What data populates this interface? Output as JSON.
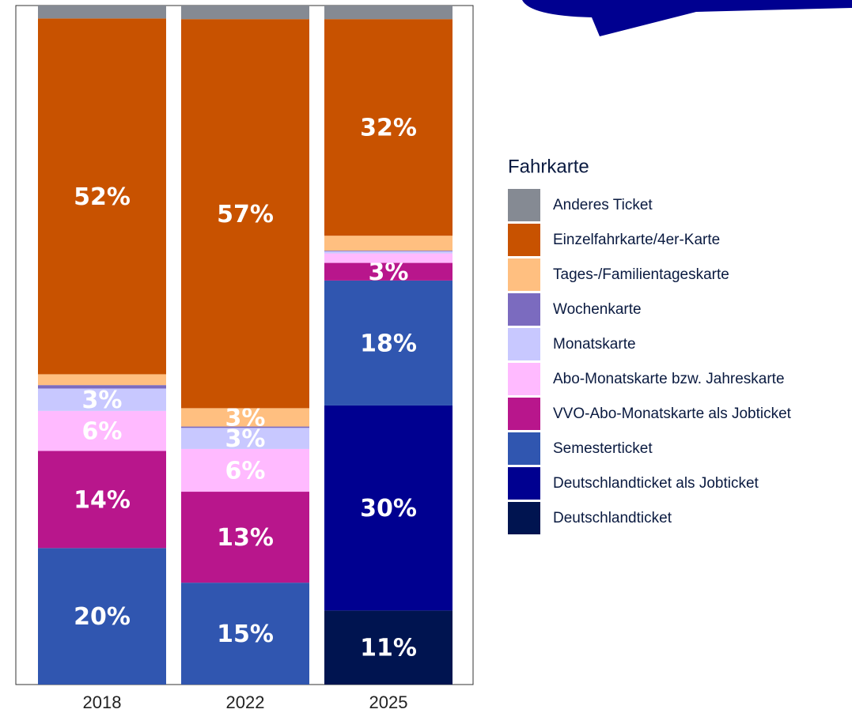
{
  "chart_data": {
    "type": "stacked_bar",
    "legend_title": "Fahrkarte",
    "categories": [
      "2018",
      "2022",
      "2025"
    ],
    "ylim": [
      0,
      100
    ],
    "series": [
      {
        "name": "Anderes Ticket",
        "color": "#858a93",
        "values": [
          1.9,
          2.0,
          2.0
        ]
      },
      {
        "name": "Einzelfahrkarte/4er-Karte",
        "color": "#c85200",
        "values": [
          52.4,
          57.3,
          31.9
        ],
        "value_labels": [
          "52%",
          "57%",
          "32%"
        ]
      },
      {
        "name": "Tages-/Familientageskarte",
        "color": "#ffbf80",
        "values": [
          1.6,
          2.7,
          2.2
        ],
        "value_labels": [
          null,
          "3%",
          null
        ]
      },
      {
        "name": "Wochenkarte",
        "color": "#7b6bbf",
        "values": [
          0.5,
          0.2,
          0.1
        ]
      },
      {
        "name": "Monatskarte",
        "color": "#c8c8ff",
        "values": [
          3.3,
          3.1,
          0.3
        ],
        "value_labels": [
          "3%",
          "3%",
          null
        ]
      },
      {
        "name": "Abo-Monatskarte bzw. Jahreskarte",
        "color": "#ffbaff",
        "values": [
          5.9,
          6.3,
          1.4
        ],
        "value_labels": [
          "6%",
          "6%",
          null
        ]
      },
      {
        "name": "VVO-Abo-Monatskarte als Jobticket",
        "color": "#b8168c",
        "values": [
          14.3,
          13.4,
          2.6
        ],
        "value_labels": [
          "14%",
          "13%",
          "3%"
        ]
      },
      {
        "name": "Semesterticket",
        "color": "#3056b0",
        "values": [
          20.1,
          15.0,
          18.4
        ],
        "value_labels": [
          "20%",
          "15%",
          "18%"
        ]
      },
      {
        "name": "Deutschlandticket als Jobticket",
        "color": "#000090",
        "values": [
          0,
          0,
          30.2
        ],
        "value_labels": [
          null,
          null,
          "30%"
        ]
      },
      {
        "name": "Deutschlandticket",
        "color": "#001450",
        "values": [
          0,
          0,
          10.9
        ],
        "value_labels": [
          null,
          null,
          "11%"
        ]
      }
    ]
  }
}
